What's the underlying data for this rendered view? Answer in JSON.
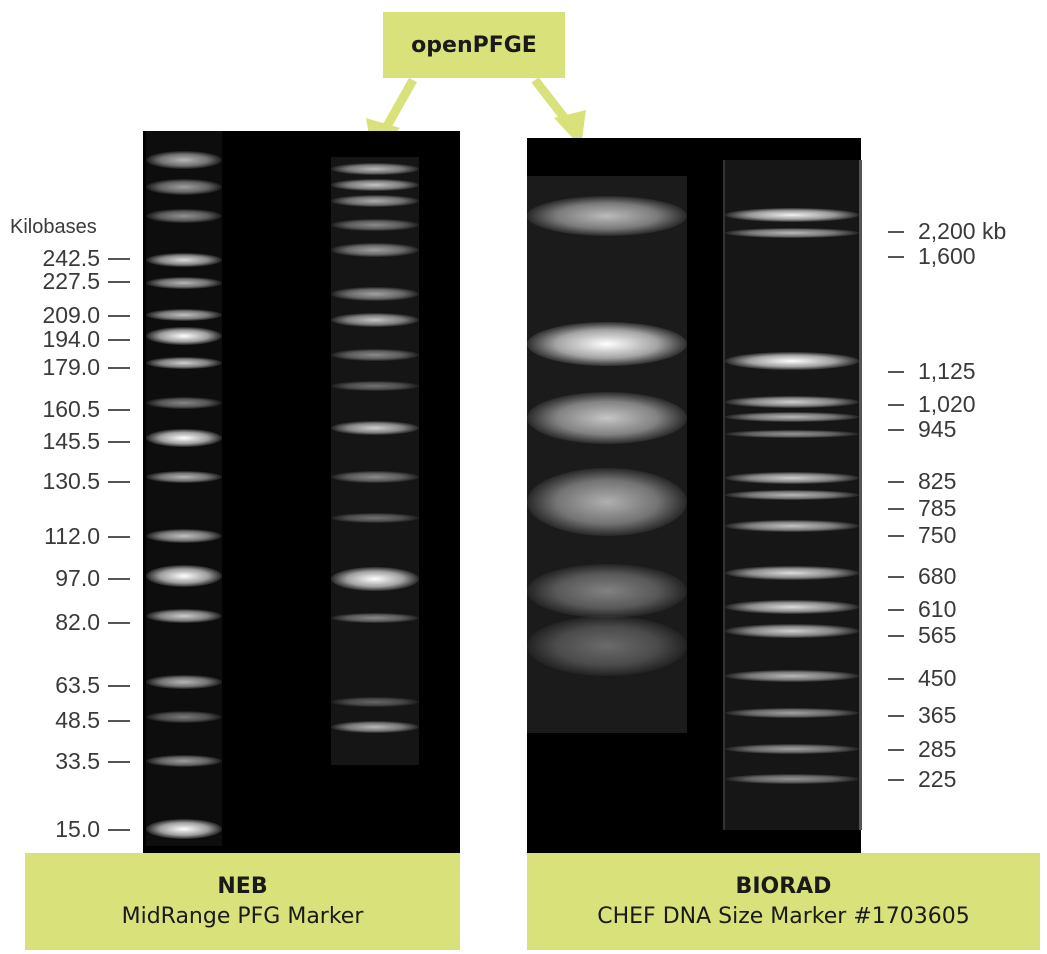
{
  "callout": {
    "label": "openPFGE"
  },
  "neb": {
    "axis_title": "Kilobases",
    "markers": [
      "242.5",
      "227.5",
      "209.0",
      "194.0",
      "179.0",
      "160.5",
      "145.5",
      "130.5",
      "112.0",
      "97.0",
      "82.0",
      "63.5",
      "48.5",
      "33.5",
      "15.0"
    ],
    "caption_title": "NEB",
    "caption_subtitle": "MidRange PFG Marker"
  },
  "biorad": {
    "markers": [
      "2,200 kb",
      "1,600",
      "1,125",
      "1,020",
      "945",
      "825",
      "785",
      "750",
      "680",
      "610",
      "565",
      "450",
      "365",
      "285",
      "225"
    ],
    "caption_title": "BIORAD",
    "caption_subtitle": "CHEF DNA Size Marker #1703605"
  },
  "colors": {
    "accent": "#d9e27a",
    "gel": "#000000",
    "band": "#ffffff"
  }
}
